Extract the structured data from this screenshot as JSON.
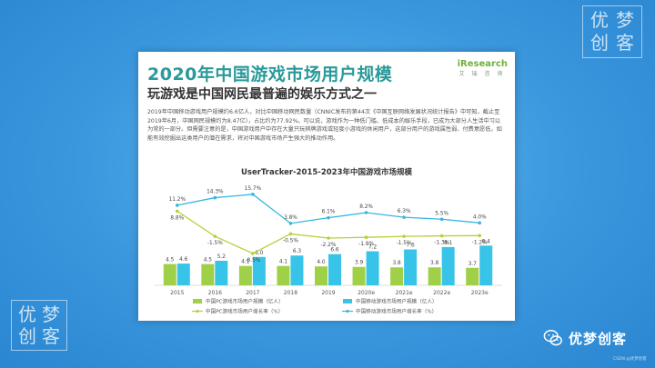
{
  "watermark": {
    "chars": [
      "优",
      "梦",
      "创",
      "客"
    ]
  },
  "slide": {
    "title": "2020年中国游戏市场用户规模",
    "subtitle": "玩游戏是中国网民最普遍的娱乐方式之一",
    "brand_name": "iResearch",
    "brand_sub": "艾 瑞 咨 询",
    "description": "2019年中国移动游戏用户规模约6.6亿人，对比中国移动网民数量（CNNIC发布的第44次《中国互联网络发展状况统计报告》中可知，截止至2019年6月，中国网民规模约为8.47亿），占比约为77.92%。可以说，游戏作为一种低门槛、低成本的娱乐手段，已成为大部分人生活中习以为常的一部分。但需要注意的是，中国游戏用户中存在大量只玩棋牌游戏或轻度小游戏的休闲用户，这部分用户的游戏属性弱、付费意愿低，如能有效挖掘出这类用户的潜在需求，将对中国游戏市场产生强大的推动作用。",
    "chart_title": "UserTracker-2015-2023年中国游戏市场规模"
  },
  "chart_data": {
    "type": "bar",
    "categories": [
      "2015",
      "2016",
      "2017",
      "2018",
      "2019",
      "2020e",
      "2021e",
      "2022e",
      "2023e"
    ],
    "series": [
      {
        "name": "中国PC游戏市场用户规模（亿人）",
        "values": [
          4.5,
          4.5,
          4.1,
          4.1,
          4.0,
          3.9,
          3.8,
          3.8,
          3.7
        ],
        "color": "#9fd047",
        "kind": "bar"
      },
      {
        "name": "中国移动游戏市场用户规模（亿人）",
        "values": [
          4.6,
          5.2,
          6.0,
          6.3,
          6.6,
          7.2,
          7.6,
          8.1,
          8.4
        ],
        "color": "#38c3e8",
        "kind": "bar"
      },
      {
        "name": "中国PC游戏市场用户增长率（%）",
        "values": [
          8.8,
          -1.5,
          -8.5,
          -0.5,
          -2.2,
          -1.9,
          -1.5,
          -1.3,
          -1.2
        ],
        "labels": [
          "8.8%",
          "-1.5%",
          "-8.5%",
          "-0.5%",
          "-2.2%",
          "-1.9%",
          "-1.5%",
          "-1.3%",
          "-1.2%"
        ],
        "color": "#b5d13a",
        "kind": "line"
      },
      {
        "name": "中国移动游戏市场用户增长率（%）",
        "values": [
          11.2,
          14.3,
          15.7,
          3.8,
          6.1,
          8.2,
          6.3,
          5.5,
          4.0
        ],
        "labels": [
          "11.2%",
          "14.3%",
          "15.7%",
          "3.8%",
          "6.1%",
          "8.2%",
          "6.3%",
          "5.5%",
          "4.0%"
        ],
        "color": "#36b7e0",
        "kind": "line"
      }
    ],
    "legend": "bottom"
  },
  "footer": {
    "wechat_name": "优梦创客",
    "credit": "CSDN @优梦创客"
  }
}
